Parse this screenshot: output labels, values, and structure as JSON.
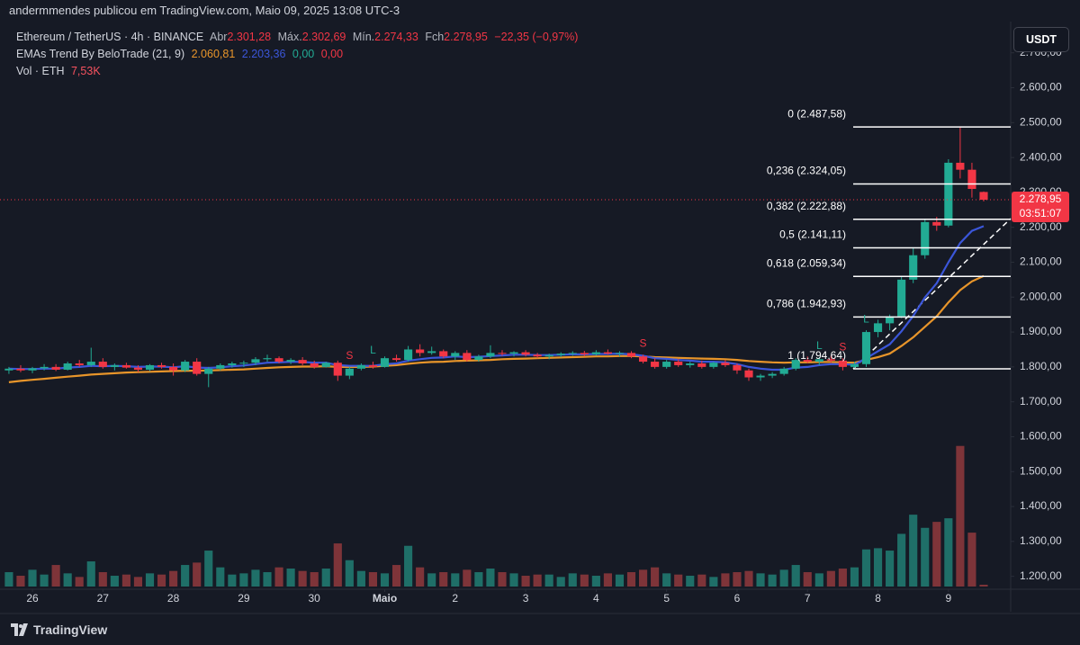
{
  "chart_data": {
    "type": "candlestick",
    "header": "andermmendes publicou em TradingView.com, Maio 09, 2025 13:08 UTC-3",
    "legend": {
      "symbol": "Ethereum / TetherUS · 4h · BINANCE",
      "open_label": "Abr",
      "open": "2.301,28",
      "high_label": "Máx.",
      "high": "2.302,69",
      "low_label": "Mín.",
      "low": "2.274,33",
      "close_label": "Fch",
      "close": "2.278,95",
      "change": "−22,35 (−0,97%)"
    },
    "indicator": {
      "name": "EMAs Trend By BeloTrade (21, 9)",
      "values": [
        "2.060,81",
        "2.203,36",
        "0,00",
        "0,00"
      ]
    },
    "volume_legend": {
      "name": "Vol · ETH",
      "value": "7,53K"
    },
    "currency": "USDT",
    "brand": "TradingView",
    "up_color": "#22ab94",
    "down_color": "#f23645",
    "volume_up_color": "#1f6f68",
    "volume_down_color": "#7e3439",
    "open": [
      1790,
      1795,
      1790,
      1796,
      1800,
      1792,
      1810,
      1805,
      1815,
      1800,
      1805,
      1798,
      1792,
      1805,
      1800,
      1790,
      1815,
      1780,
      1795,
      1805,
      1810,
      1812,
      1822,
      1825,
      1815,
      1820,
      1810,
      1800,
      1812,
      1775,
      1795,
      1805,
      1800,
      1825,
      1820,
      1850,
      1840,
      1845,
      1830,
      1840,
      1820,
      1830,
      1840,
      1838,
      1842,
      1835,
      1830,
      1834,
      1838,
      1840,
      1836,
      1842,
      1838,
      1840,
      1830,
      1815,
      1800,
      1815,
      1805,
      1810,
      1800,
      1812,
      1805,
      1790,
      1770,
      1775,
      1780,
      1795,
      1820,
      1815,
      1822,
      1818,
      1800,
      1808,
      1900,
      1925,
      1945,
      2050,
      2120,
      2215,
      2205,
      2385,
      2365,
      2301.28
    ],
    "high": [
      1800,
      1805,
      1800,
      1808,
      1808,
      1815,
      1820,
      1855,
      1825,
      1810,
      1812,
      1805,
      1808,
      1812,
      1810,
      1820,
      1825,
      1800,
      1810,
      1815,
      1818,
      1828,
      1835,
      1830,
      1825,
      1828,
      1818,
      1815,
      1818,
      1800,
      1810,
      1815,
      1830,
      1835,
      1860,
      1865,
      1858,
      1850,
      1845,
      1848,
      1835,
      1862,
      1848,
      1845,
      1848,
      1840,
      1838,
      1842,
      1845,
      1846,
      1848,
      1850,
      1845,
      1845,
      1835,
      1825,
      1820,
      1822,
      1815,
      1818,
      1815,
      1820,
      1810,
      1795,
      1780,
      1785,
      1800,
      1825,
      1830,
      1828,
      1832,
      1825,
      1815,
      1905,
      1935,
      1950,
      2060,
      2140,
      2225,
      2230,
      2395,
      2487.58,
      2385,
      2302.69
    ],
    "low": [
      1780,
      1785,
      1782,
      1790,
      1788,
      1790,
      1800,
      1800,
      1795,
      1790,
      1795,
      1785,
      1788,
      1795,
      1775,
      1785,
      1775,
      1742,
      1790,
      1798,
      1800,
      1805,
      1815,
      1810,
      1808,
      1805,
      1795,
      1798,
      1760,
      1765,
      1790,
      1795,
      1798,
      1815,
      1815,
      1830,
      1835,
      1825,
      1820,
      1815,
      1815,
      1825,
      1832,
      1830,
      1830,
      1825,
      1822,
      1828,
      1832,
      1830,
      1832,
      1835,
      1830,
      1825,
      1810,
      1795,
      1795,
      1800,
      1798,
      1795,
      1795,
      1800,
      1780,
      1760,
      1760,
      1768,
      1775,
      1790,
      1810,
      1805,
      1812,
      1790,
      1794.64,
      1800,
      1885,
      1905,
      1940,
      2040,
      2110,
      2190,
      2200,
      2340,
      2285,
      2274.33
    ],
    "close": [
      1795,
      1790,
      1796,
      1800,
      1792,
      1810,
      1805,
      1815,
      1800,
      1805,
      1798,
      1792,
      1805,
      1800,
      1790,
      1815,
      1780,
      1795,
      1805,
      1810,
      1812,
      1822,
      1825,
      1815,
      1820,
      1810,
      1800,
      1812,
      1775,
      1795,
      1805,
      1800,
      1825,
      1820,
      1850,
      1840,
      1845,
      1830,
      1840,
      1820,
      1830,
      1840,
      1838,
      1842,
      1835,
      1830,
      1834,
      1838,
      1840,
      1836,
      1842,
      1838,
      1840,
      1830,
      1815,
      1800,
      1815,
      1805,
      1810,
      1800,
      1812,
      1805,
      1790,
      1770,
      1775,
      1780,
      1795,
      1820,
      1815,
      1822,
      1818,
      1800,
      1808,
      1900,
      1925,
      1945,
      2050,
      2120,
      2215,
      2205,
      2385,
      2365,
      2310,
      2278.95
    ],
    "volume": [
      60,
      45,
      70,
      50,
      90,
      55,
      40,
      105,
      60,
      45,
      50,
      40,
      55,
      50,
      65,
      90,
      100,
      150,
      80,
      50,
      55,
      70,
      60,
      80,
      75,
      65,
      60,
      75,
      180,
      110,
      65,
      60,
      55,
      90,
      170,
      80,
      55,
      60,
      55,
      70,
      60,
      75,
      60,
      55,
      45,
      50,
      50,
      40,
      55,
      50,
      45,
      55,
      50,
      60,
      70,
      80,
      55,
      50,
      45,
      50,
      40,
      55,
      60,
      65,
      55,
      50,
      70,
      90,
      60,
      55,
      65,
      75,
      80,
      155,
      160,
      150,
      220,
      300,
      245,
      270,
      285,
      587,
      225,
      7.53
    ],
    "volume_lim": [
      0,
      800
    ],
    "ema_series": [
      {
        "color": "#e8952a",
        "values": [
          1756,
          1760,
          1763,
          1766,
          1769,
          1772,
          1775,
          1778,
          1780,
          1782,
          1784,
          1785,
          1786,
          1787,
          1788,
          1789,
          1789,
          1790,
          1791,
          1792,
          1793,
          1795,
          1797,
          1799,
          1800,
          1801,
          1801,
          1802,
          1800,
          1800,
          1800,
          1801,
          1803,
          1805,
          1809,
          1812,
          1814,
          1815,
          1817,
          1818,
          1819,
          1820,
          1822,
          1823,
          1824,
          1825,
          1826,
          1827,
          1828,
          1829,
          1830,
          1830,
          1831,
          1831,
          1830,
          1828,
          1827,
          1826,
          1825,
          1824,
          1823,
          1822,
          1820,
          1817,
          1815,
          1813,
          1812,
          1813,
          1813,
          1814,
          1814,
          1813,
          1812,
          1820,
          1828,
          1838,
          1860,
          1885,
          1915,
          1945,
          1985,
          2020,
          2045,
          2060.81
        ]
      },
      {
        "color": "#3b56d9",
        "values": [
          1795,
          1794,
          1794,
          1795,
          1795,
          1798,
          1800,
          1803,
          1802,
          1803,
          1802,
          1800,
          1801,
          1801,
          1799,
          1802,
          1798,
          1797,
          1799,
          1802,
          1804,
          1808,
          1812,
          1813,
          1815,
          1814,
          1812,
          1812,
          1805,
          1803,
          1803,
          1803,
          1808,
          1810,
          1818,
          1822,
          1826,
          1827,
          1830,
          1828,
          1829,
          1831,
          1833,
          1835,
          1835,
          1834,
          1834,
          1835,
          1836,
          1836,
          1837,
          1837,
          1838,
          1836,
          1832,
          1825,
          1823,
          1820,
          1818,
          1815,
          1815,
          1813,
          1808,
          1800,
          1795,
          1792,
          1792,
          1798,
          1800,
          1805,
          1808,
          1808,
          1806,
          1825,
          1845,
          1865,
          1902,
          1946,
          1999,
          2040,
          2100,
          2155,
          2190,
          2203.36
        ]
      }
    ],
    "xlim": [
      -0.76,
      85.3
    ],
    "xticks": [
      {
        "value": 2,
        "label": "26"
      },
      {
        "value": 8,
        "label": "27"
      },
      {
        "value": 14,
        "label": "28"
      },
      {
        "value": 20,
        "label": "29"
      },
      {
        "value": 26,
        "label": "30"
      },
      {
        "value": 32,
        "label": "Maio"
      },
      {
        "value": 38,
        "label": "2"
      },
      {
        "value": 44,
        "label": "3"
      },
      {
        "value": 50,
        "label": "4"
      },
      {
        "value": 56,
        "label": "5"
      },
      {
        "value": 62,
        "label": "6"
      },
      {
        "value": 68,
        "label": "7"
      },
      {
        "value": 74,
        "label": "8"
      },
      {
        "value": 80,
        "label": "9"
      }
    ],
    "ylim": [
      1163,
      2774
    ],
    "yticks": [
      {
        "value": 1200,
        "label": "1.200,00"
      },
      {
        "value": 1300,
        "label": "1.300,00"
      },
      {
        "value": 1400,
        "label": "1.400,00"
      },
      {
        "value": 1500,
        "label": "1.500,00"
      },
      {
        "value": 1600,
        "label": "1.600,00"
      },
      {
        "value": 1700,
        "label": "1.700,00"
      },
      {
        "value": 1800,
        "label": "1.800,00"
      },
      {
        "value": 1900,
        "label": "1.900,00"
      },
      {
        "value": 2000,
        "label": "2.000,00"
      },
      {
        "value": 2100,
        "label": "2.100,00"
      },
      {
        "value": 2200,
        "label": "2.200,00"
      },
      {
        "value": 2300,
        "label": "2.300,00"
      },
      {
        "value": 2400,
        "label": "2.400,00"
      },
      {
        "value": 2500,
        "label": "2.500,00"
      },
      {
        "value": 2600,
        "label": "2.600,00"
      },
      {
        "value": 2700,
        "label": "2.700,00"
      }
    ],
    "last_price": {
      "value": 2278.95,
      "label": "2.278,95",
      "countdown": "03:51:07"
    },
    "fib_levels": [
      {
        "value": 2487.58,
        "label": "0 (2.487,58)"
      },
      {
        "value": 2324.05,
        "label": "0,236 (2.324,05)"
      },
      {
        "value": 2222.88,
        "label": "0,382 (2.222,88)"
      },
      {
        "value": 2141.11,
        "label": "0,5 (2.141,11)"
      },
      {
        "value": 2059.34,
        "label": "0,618 (2.059,34)"
      },
      {
        "value": 1942.93,
        "label": "0,786 (1.942,93)"
      },
      {
        "value": 1794.64,
        "label": "1 (1.794,64)"
      }
    ],
    "signals": [
      {
        "index": 29,
        "label": "S",
        "color": "#f23645"
      },
      {
        "index": 31,
        "label": "L",
        "color": "#22ab94"
      },
      {
        "index": 54,
        "label": "S",
        "color": "#f23645"
      },
      {
        "index": 69,
        "label": "L",
        "color": "#22ab94"
      },
      {
        "index": 71,
        "label": "S",
        "color": "#f23645"
      },
      {
        "index": 73,
        "label": "L",
        "color": "#22ab94"
      }
    ]
  }
}
